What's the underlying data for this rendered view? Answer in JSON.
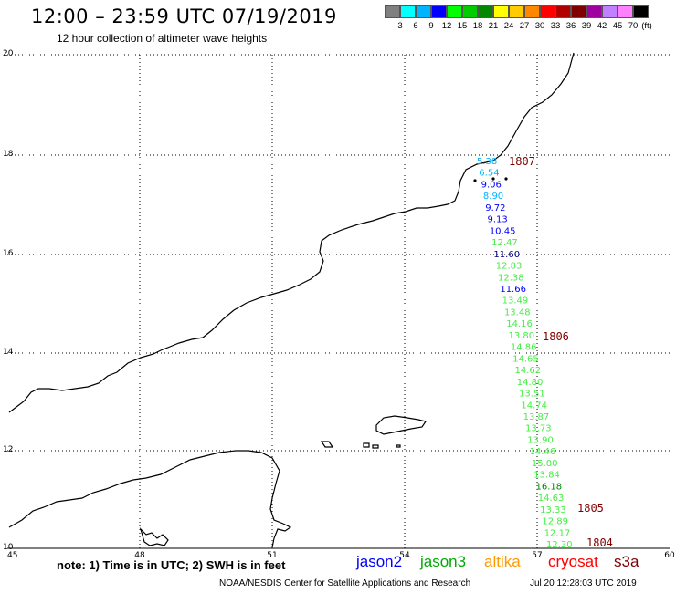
{
  "header": {
    "title": "12:00 – 23:59 UTC 07/19/2019",
    "subtitle": "12 hour collection of altimeter wave heights"
  },
  "scale": {
    "colors": [
      "#808080",
      "#00ffff",
      "#00b4ff",
      "#0000ff",
      "#00ff00",
      "#00cc00",
      "#008800",
      "#ffff00",
      "#ffcc00",
      "#ff8800",
      "#ff0000",
      "#b00000",
      "#800000",
      "#a000a0",
      "#c080ff",
      "#ff80ff",
      "#000000"
    ],
    "labels": [
      "3",
      "6",
      "9",
      "12",
      "15",
      "18",
      "21",
      "24",
      "27",
      "30",
      "33",
      "36",
      "39",
      "42",
      "45",
      "70",
      "(ft)"
    ]
  },
  "axes": {
    "x_ticks": [
      "45",
      "48",
      "51",
      "54",
      "57",
      "60"
    ],
    "y_ticks": [
      "20",
      "18",
      "16",
      "14",
      "12",
      "10"
    ]
  },
  "track": {
    "values": [
      {
        "v": "5.38",
        "c": "#00b4ff"
      },
      {
        "v": "6.54",
        "c": "#00b4ff"
      },
      {
        "v": "9.06",
        "c": "#0000ff"
      },
      {
        "v": "8.90",
        "c": "#00b4ff"
      },
      {
        "v": "9.72",
        "c": "#0000ff"
      },
      {
        "v": "9.13",
        "c": "#0000ff"
      },
      {
        "v": "10.45",
        "c": "#0000ff"
      },
      {
        "v": "12.47",
        "c": "#44ee44"
      },
      {
        "v": "11.60",
        "c": "#000080"
      },
      {
        "v": "12.83",
        "c": "#44ee44"
      },
      {
        "v": "12.38",
        "c": "#44ee44"
      },
      {
        "v": "11.66",
        "c": "#0000ff"
      },
      {
        "v": "13.49",
        "c": "#44ee44"
      },
      {
        "v": "13.48",
        "c": "#44ee44"
      },
      {
        "v": "14.16",
        "c": "#44ee44"
      },
      {
        "v": "13.80",
        "c": "#44ee44"
      },
      {
        "v": "14.86",
        "c": "#44ee44"
      },
      {
        "v": "14.65",
        "c": "#44ee44"
      },
      {
        "v": "14.62",
        "c": "#44ee44"
      },
      {
        "v": "14.80",
        "c": "#44ee44"
      },
      {
        "v": "13.51",
        "c": "#44ee44"
      },
      {
        "v": "14.74",
        "c": "#44ee44"
      },
      {
        "v": "13.87",
        "c": "#44ee44"
      },
      {
        "v": "13.73",
        "c": "#44ee44"
      },
      {
        "v": "13.90",
        "c": "#44ee44"
      },
      {
        "v": "14.46",
        "c": "#44ee44"
      },
      {
        "v": "15.00",
        "c": "#44ee44"
      },
      {
        "v": "13.84",
        "c": "#44ee44"
      },
      {
        "v": "16.18",
        "c": "#008800"
      },
      {
        "v": "14.63",
        "c": "#44ee44"
      },
      {
        "v": "13.33",
        "c": "#44ee44"
      },
      {
        "v": "12.89",
        "c": "#44ee44"
      },
      {
        "v": "12.17",
        "c": "#44ee44"
      },
      {
        "v": "12.30",
        "c": "#44ee44"
      }
    ],
    "time_labels": [
      "1807",
      "1806",
      "1805",
      "1804"
    ],
    "time_color": "#800000"
  },
  "footer": {
    "note": "note: 1) Time is in UTC; 2) SWH is in feet",
    "legend": [
      {
        "name": "jason2",
        "color": "#0000ff"
      },
      {
        "name": "jason3",
        "color": "#00aa00"
      },
      {
        "name": "altika",
        "color": "#ff9900"
      },
      {
        "name": "cryosat",
        "color": "#ff0000"
      },
      {
        "name": "s3a",
        "color": "#800000"
      }
    ],
    "credit": "NOAA/NESDIS Center for Satellite Applications and Research",
    "stamp": "Jul 20 12:28:03 UTC 2019"
  }
}
